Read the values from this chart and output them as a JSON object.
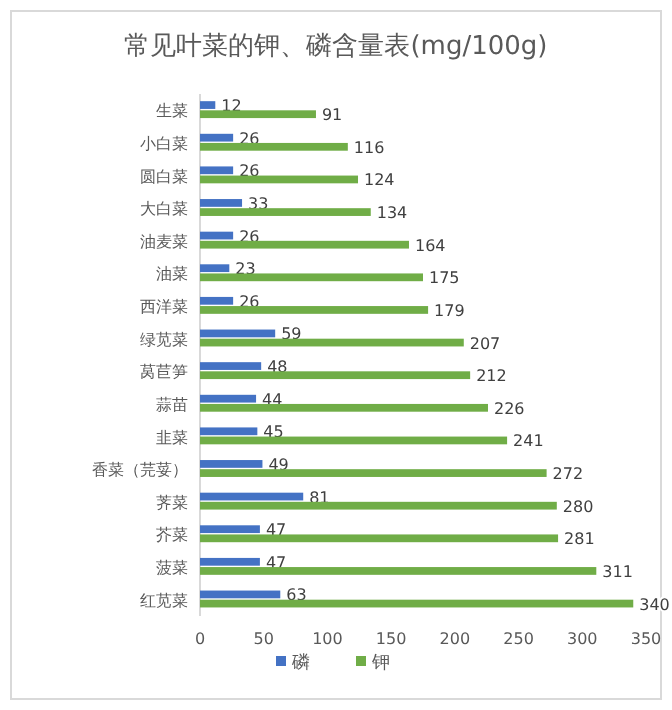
{
  "chart_data": {
    "type": "bar",
    "orientation": "horizontal",
    "title": "常见叶菜的钾、磷含量表(mg/100g)",
    "categories": [
      "生菜",
      "小白菜",
      "圆白菜",
      "大白菜",
      "油麦菜",
      "油菜",
      "西洋菜",
      "绿苋菜",
      "莴苣笋",
      "蒜苗",
      "韭菜",
      "香菜（芫荽）",
      "荠菜",
      "芥菜",
      "菠菜",
      "红苋菜"
    ],
    "series": [
      {
        "name": "磷",
        "color": "#4472c4",
        "values": [
          12,
          26,
          26,
          33,
          26,
          23,
          26,
          59,
          48,
          44,
          45,
          49,
          81,
          47,
          47,
          63
        ]
      },
      {
        "name": "钾",
        "color": "#70ad47",
        "values": [
          91,
          116,
          124,
          134,
          164,
          175,
          179,
          207,
          212,
          226,
          241,
          272,
          280,
          281,
          311,
          340
        ]
      }
    ],
    "xlim": [
      0,
      350
    ],
    "xticks": [
      0,
      50,
      100,
      150,
      200,
      250,
      300,
      350
    ],
    "data_labels": true,
    "legend": "bottom",
    "grid": false
  }
}
